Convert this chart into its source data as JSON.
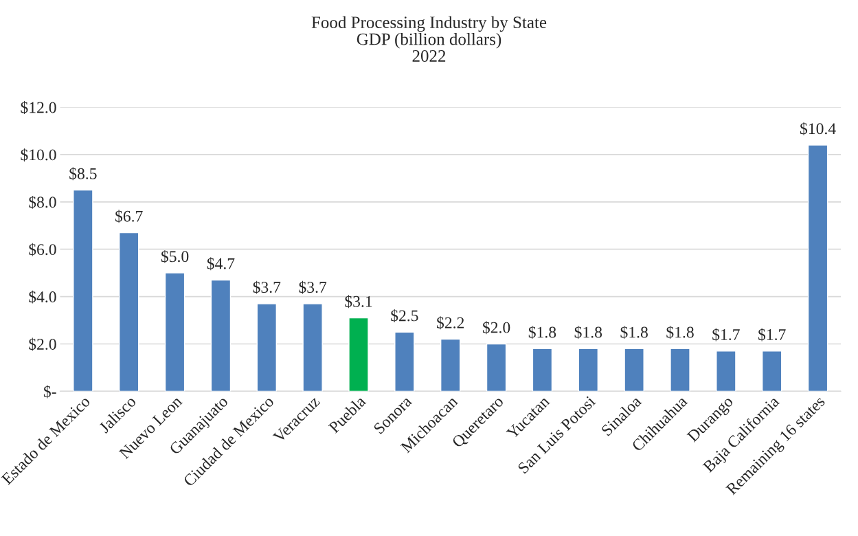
{
  "chart_data": {
    "type": "bar",
    "title": "Food Processing Industry by State\nGDP (billion dollars)\n2022",
    "categories": [
      "Estado de Mexico",
      "Jalisco",
      "Nuevo Leon",
      "Guanajuato",
      "Ciudad de Mexico",
      "Veracruz",
      "Puebla",
      "Sonora",
      "Michoacan",
      "Queretaro",
      "Yucatan",
      "San Luis Potosi",
      "Sinaloa",
      "Chihuahua",
      "Durango",
      "Baja California",
      "Remaining 16 states"
    ],
    "values": [
      8.5,
      6.7,
      5.0,
      4.7,
      3.7,
      3.7,
      3.1,
      2.5,
      2.2,
      2.0,
      1.8,
      1.8,
      1.8,
      1.8,
      1.7,
      1.7,
      10.4
    ],
    "colors": [
      "#4f81bd",
      "#4f81bd",
      "#4f81bd",
      "#4f81bd",
      "#4f81bd",
      "#4f81bd",
      "#00b050",
      "#4f81bd",
      "#4f81bd",
      "#4f81bd",
      "#4f81bd",
      "#4f81bd",
      "#4f81bd",
      "#4f81bd",
      "#4f81bd",
      "#4f81bd",
      "#4f81bd"
    ],
    "value_labels": [
      "$8.5",
      "$6.7",
      "$5.0",
      "$4.7",
      "$3.7",
      "$3.7",
      "$3.1",
      "$2.5",
      "$2.2",
      "$2.0",
      "$1.8",
      "$1.8",
      "$1.8",
      "$1.8",
      "$1.7",
      "$1.7",
      "$10.4"
    ],
    "ylim": [
      0,
      12
    ],
    "yticks": [
      {
        "value": 0,
        "label": "$-"
      },
      {
        "value": 2,
        "label": "$2.0"
      },
      {
        "value": 4,
        "label": "$4.0"
      },
      {
        "value": 6,
        "label": "$6.0"
      },
      {
        "value": 8,
        "label": "$8.0"
      },
      {
        "value": 10,
        "label": "$10.0"
      },
      {
        "value": 12,
        "label": "$12.0"
      }
    ],
    "grid": "y"
  }
}
